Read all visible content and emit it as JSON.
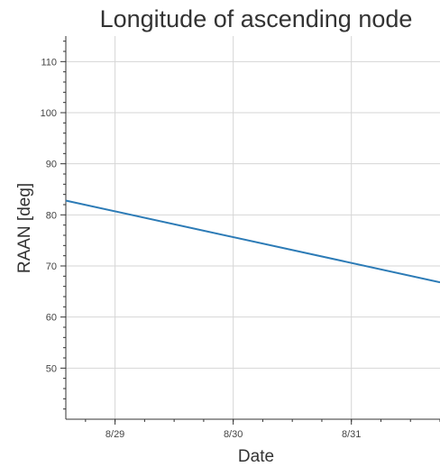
{
  "chart_data": {
    "type": "line",
    "title": "Longitude of ascending node",
    "xlabel": "Date",
    "ylabel": "RAAN [deg]",
    "x_ticks": [
      "8/29",
      "8/30",
      "8/31"
    ],
    "x_tick_dates": [
      "2023-08-29",
      "2023-08-30",
      "2023-08-31"
    ],
    "xlim": [
      "2023-08-28T14:00",
      "2023-08-31T18:00"
    ],
    "y_ticks": [
      50,
      60,
      70,
      80,
      90,
      100,
      110
    ],
    "ylim": [
      40,
      115
    ],
    "grid": true,
    "series": [
      {
        "color": "#2c7bb6",
        "points": [
          {
            "x": "2023-08-28T14:00",
            "y": 82.8
          },
          {
            "x": "2023-08-31T18:00",
            "y": 66.8
          }
        ]
      }
    ]
  }
}
